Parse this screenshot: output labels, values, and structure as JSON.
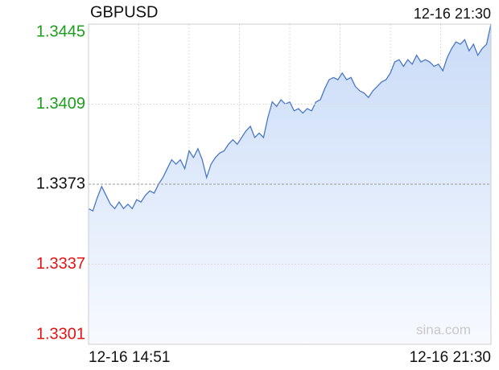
{
  "chart_data": {
    "type": "line",
    "title": "GBPUSD",
    "header_time": "12-16 21:30",
    "watermark": "sina.com",
    "x_labels": [
      "12-16 14:51",
      "12-16 21:30"
    ],
    "series": [
      {
        "name": "GBPUSD",
        "color": "#4a78c6",
        "values": [
          1.3362,
          1.3361,
          1.3367,
          1.3372,
          1.3368,
          1.3364,
          1.3362,
          1.3365,
          1.3362,
          1.3364,
          1.3362,
          1.3366,
          1.3365,
          1.3368,
          1.337,
          1.3369,
          1.3373,
          1.3376,
          1.338,
          1.3384,
          1.3382,
          1.3384,
          1.338,
          1.3388,
          1.3385,
          1.3389,
          1.3384,
          1.3376,
          1.3382,
          1.3385,
          1.3387,
          1.3388,
          1.3391,
          1.3393,
          1.3391,
          1.3394,
          1.3397,
          1.3399,
          1.3394,
          1.3396,
          1.3394,
          1.3403,
          1.341,
          1.3408,
          1.3411,
          1.3409,
          1.341,
          1.3406,
          1.3407,
          1.3405,
          1.3407,
          1.3406,
          1.341,
          1.3411,
          1.3416,
          1.342,
          1.3421,
          1.342,
          1.3423,
          1.342,
          1.3421,
          1.3417,
          1.3415,
          1.3414,
          1.3412,
          1.3415,
          1.3417,
          1.3419,
          1.342,
          1.3423,
          1.3428,
          1.3429,
          1.3426,
          1.3429,
          1.3427,
          1.3431,
          1.3428,
          1.3429,
          1.3428,
          1.3426,
          1.3427,
          1.3424,
          1.343,
          1.3434,
          1.3437,
          1.3436,
          1.3438,
          1.3433,
          1.3436,
          1.3431,
          1.3434,
          1.3436,
          1.3445
        ]
      }
    ],
    "ylim": [
      1.3301,
      1.3445
    ],
    "yticks": [
      1.3301,
      1.3337,
      1.3373,
      1.3409,
      1.3445
    ],
    "base": 1.3373,
    "up_color": "#1b9e1b",
    "down_color": "#e41414",
    "grid": true,
    "x_grid_divisions": 8
  }
}
